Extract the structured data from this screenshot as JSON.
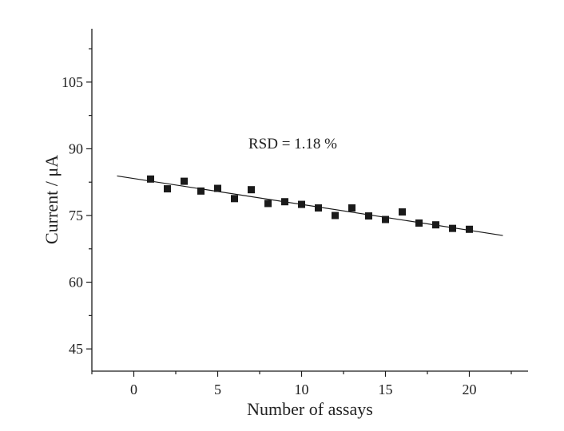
{
  "chart_data": {
    "type": "scatter",
    "title": "",
    "xlabel": "Number of assays",
    "ylabel": "Current / μA",
    "xlim": [
      -2.5,
      23.5
    ],
    "ylim": [
      40,
      117
    ],
    "x_ticks": [
      0,
      5,
      10,
      15,
      20
    ],
    "x_tick_labels": [
      "0",
      "5",
      "10",
      "15",
      "20"
    ],
    "y_ticks": [
      45,
      60,
      75,
      90,
      105
    ],
    "y_tick_labels": [
      "45",
      "60",
      "75",
      "90",
      "105"
    ],
    "grid": false,
    "legend": "none",
    "annotation": "RSD = 1.18 %",
    "series": [
      {
        "x": [
          1,
          2,
          3,
          4,
          5,
          6,
          7,
          8,
          9,
          10,
          11,
          12,
          13,
          14,
          15,
          16,
          17,
          18,
          19,
          20
        ],
        "values": [
          83.2,
          81.0,
          82.7,
          80.5,
          81.1,
          78.8,
          80.8,
          77.7,
          78.1,
          77.5,
          76.7,
          75.0,
          76.7,
          74.9,
          74.1,
          75.8,
          73.3,
          72.9,
          72.1,
          71.9
        ],
        "marker": "square",
        "color": "#1a1a1a"
      }
    ],
    "fit_line": {
      "x": [
        -1,
        22
      ],
      "y": [
        83.9,
        70.5
      ],
      "color": "#1a1a1a"
    }
  }
}
